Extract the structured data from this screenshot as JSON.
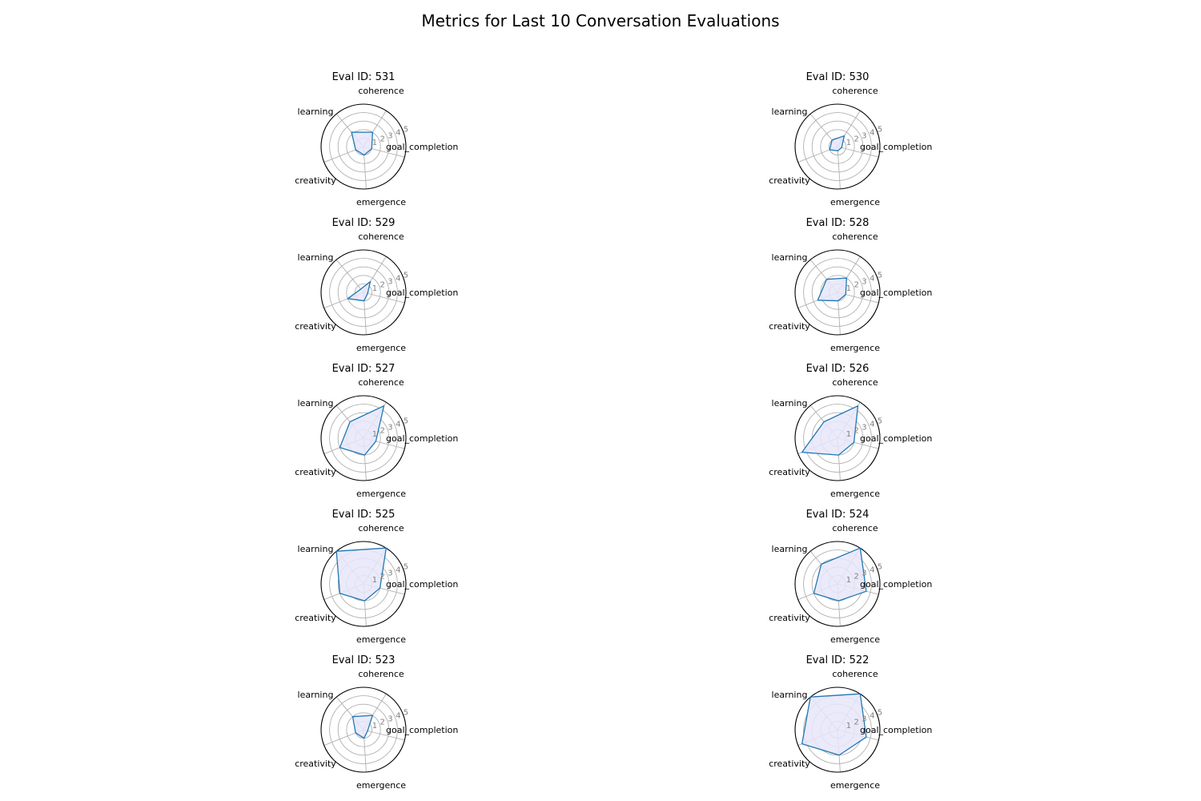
{
  "figure": {
    "title": "Metrics for Last 10 Conversation Evaluations"
  },
  "colors": {
    "line": "#1f77b4",
    "fill": "#e6e6fa",
    "grid": "#b0b0b0",
    "frame": "#000000"
  },
  "chart_data": {
    "type": "radar",
    "axes": [
      "goal_completion",
      "coherence",
      "learning",
      "creativity",
      "emergence"
    ],
    "rlim": [
      0,
      5
    ],
    "rticks": [
      "1",
      "2",
      "3",
      "4",
      "5"
    ],
    "grid": true,
    "panels": [
      {
        "title": "Eval ID: 531",
        "values": [
          1.0,
          2.0,
          2.2,
          1.0,
          1.0
        ]
      },
      {
        "title": "Eval ID: 530",
        "values": [
          0.5,
          1.5,
          1.0,
          1.0,
          0.5
        ]
      },
      {
        "title": "Eval ID: 529",
        "values": [
          0.5,
          1.5,
          0.5,
          2.0,
          1.0
        ]
      },
      {
        "title": "Eval ID: 528",
        "values": [
          1.0,
          2.0,
          2.0,
          2.5,
          1.0
        ]
      },
      {
        "title": "Eval ID: 527",
        "values": [
          1.5,
          4.5,
          2.5,
          3.0,
          2.0
        ]
      },
      {
        "title": "Eval ID: 526",
        "values": [
          2.0,
          4.5,
          2.5,
          4.5,
          2.0
        ]
      },
      {
        "title": "Eval ID: 525",
        "values": [
          2.0,
          5.0,
          5.0,
          3.0,
          2.0
        ]
      },
      {
        "title": "Eval ID: 524",
        "values": [
          3.5,
          5.0,
          3.0,
          3.0,
          2.0
        ]
      },
      {
        "title": "Eval ID: 523",
        "values": [
          0.5,
          2.0,
          2.0,
          1.0,
          1.0
        ]
      },
      {
        "title": "Eval ID: 522",
        "values": [
          3.5,
          5.0,
          5.0,
          4.5,
          3.0
        ]
      }
    ]
  }
}
